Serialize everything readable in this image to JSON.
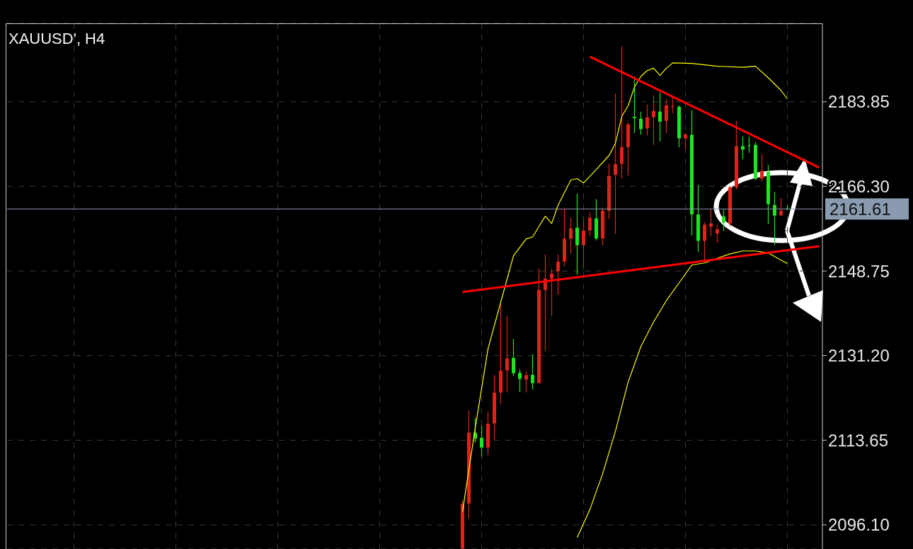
{
  "chart_data": {
    "type": "candlestick",
    "title": "XAUUSD', H4",
    "categories": [
      null,
      null,
      null,
      null,
      null,
      null,
      null,
      null,
      null,
      null,
      null,
      null,
      null,
      null,
      null,
      null,
      null,
      null,
      null,
      null,
      null,
      null,
      null,
      null,
      null,
      null,
      null,
      null,
      null,
      null,
      null,
      null,
      null,
      null,
      null,
      null,
      null,
      null,
      null,
      null,
      null,
      null,
      null,
      null,
      null,
      null,
      null,
      null,
      null,
      null,
      null,
      null,
      null,
      null,
      null,
      null,
      null,
      null,
      null,
      null,
      null,
      null,
      null,
      null,
      null,
      null,
      null,
      null,
      null,
      null,
      null,
      null,
      null,
      null,
      null,
      null,
      null,
      null,
      null,
      null,
      null,
      null,
      null,
      null,
      null,
      null,
      null,
      null,
      null,
      null,
      null,
      null,
      null,
      null,
      null,
      null,
      null,
      null,
      null,
      null,
      null,
      null,
      null,
      null,
      null,
      null,
      null,
      null,
      null,
      null,
      null,
      null,
      null,
      null,
      null,
      null,
      null,
      null,
      null,
      null,
      null,
      null,
      null,
      null,
      null,
      null,
      null,
      null
    ],
    "ylim": [
      2091.1,
      2200.1
    ],
    "yticks": [
      {
        "value": 2096.1,
        "label": "2096.10"
      },
      2113.65,
      {
        "value": 2131.2,
        "label": "2131.20"
      },
      2148.75,
      {
        "value": 2166.3,
        "label": "2166.30"
      },
      2183.85
    ],
    "grid": true,
    "tick_labels": "y",
    "ref_lines": [
      {
        "axis": "y",
        "value": 2161.61,
        "label": "2161.61",
        "color": "#8a9bb0"
      }
    ],
    "series": [
      {
        "type": "line",
        "color": "#ffff00",
        "values": [
          null,
          null,
          null,
          null,
          null,
          null,
          null,
          null,
          null,
          null,
          null,
          null,
          null,
          null,
          null,
          null,
          null,
          null,
          null,
          null,
          null,
          null,
          null,
          null,
          null,
          null,
          null,
          null,
          null,
          null,
          null,
          null,
          null,
          null,
          null,
          null,
          null,
          null,
          null,
          null,
          null,
          null,
          null,
          null,
          null,
          null,
          null,
          null,
          null,
          null,
          null,
          null,
          null,
          null,
          null,
          null,
          null,
          null,
          null,
          null,
          null,
          null,
          null,
          null,
          null,
          null,
          null,
          null,
          null,
          null,
          null,
          2098.9,
          null,
          2116.2,
          null,
          2132.6,
          null,
          2142.3,
          null,
          2151.9,
          null,
          2155.4,
          2155.8,
          2158.0,
          2160.1,
          2158.6,
          2162.4,
          null,
          2167.6,
          2167.9,
          2167.0,
          null,
          2169.8,
          null,
          2172.7,
          2175.2,
          2180.8,
          2183.0,
          2186.9,
          2189.1,
          2190.3,
          2190.8,
          2189.3,
          2190.8,
          2191.9,
          null,
          null,
          2191.8,
          null,
          null,
          null,
          2191.2,
          null,
          null,
          null,
          2191.0,
          null,
          2191.2,
          null,
          2188.8,
          null,
          2186.2,
          2184.4,
          null,
          null,
          null,
          null,
          null
        ]
      },
      {
        "type": "line",
        "color": "#ffff00",
        "values": [
          null,
          null,
          null,
          null,
          null,
          null,
          null,
          null,
          null,
          null,
          null,
          null,
          null,
          null,
          null,
          null,
          null,
          null,
          null,
          null,
          null,
          null,
          null,
          null,
          null,
          null,
          null,
          null,
          null,
          null,
          null,
          null,
          null,
          null,
          null,
          null,
          null,
          null,
          null,
          null,
          null,
          null,
          null,
          null,
          null,
          null,
          null,
          null,
          null,
          null,
          null,
          null,
          null,
          null,
          null,
          null,
          null,
          null,
          null,
          null,
          null,
          null,
          null,
          null,
          null,
          null,
          null,
          null,
          null,
          null,
          null,
          null,
          null,
          null,
          null,
          null,
          null,
          null,
          null,
          null,
          null,
          null,
          null,
          null,
          null,
          null,
          null,
          null,
          null,
          2093.5,
          null,
          2099.3,
          null,
          2106.7,
          null,
          2115.5,
          null,
          2125.7,
          null,
          2133.1,
          null,
          2138.2,
          null,
          2142.6,
          null,
          2146.3,
          null,
          2150.0,
          null,
          2150.4,
          null,
          2151.4,
          null,
          2152.3,
          null,
          2152.9,
          null,
          2152.9,
          null,
          2152.5,
          null,
          2151.0,
          2150.3,
          null,
          null,
          null,
          null,
          null
        ]
      },
      {
        "type": "line",
        "color": "#ff0000",
        "values": [
          null,
          null,
          null,
          null,
          null,
          null,
          null,
          null,
          null,
          null,
          null,
          null,
          null,
          null,
          null,
          null,
          null,
          null,
          null,
          null,
          null,
          null,
          null,
          null,
          null,
          null,
          null,
          null,
          null,
          null,
          null,
          null,
          null,
          null,
          null,
          null,
          null,
          null,
          null,
          null,
          null,
          null,
          null,
          null,
          null,
          null,
          null,
          null,
          null,
          null,
          null,
          null,
          null,
          null,
          null,
          null,
          null,
          null,
          null,
          null,
          null,
          null,
          null,
          null,
          null,
          null,
          null,
          null,
          null,
          null,
          null,
          null,
          null,
          null,
          null,
          null,
          null,
          null,
          null,
          null,
          null,
          null,
          null,
          null,
          null,
          null,
          null,
          null,
          null,
          null,
          null,
          2193.2,
          null,
          null,
          null,
          null,
          null,
          null,
          null,
          null,
          null,
          null,
          null,
          null,
          null,
          null,
          null,
          null,
          null,
          null,
          null,
          null,
          null,
          null,
          null,
          null,
          null,
          null,
          null,
          null,
          null,
          null,
          null,
          null,
          null,
          null,
          null,
          2170.2
        ]
      },
      {
        "type": "line",
        "color": "#ff0000",
        "values": [
          null,
          null,
          null,
          null,
          null,
          null,
          null,
          null,
          null,
          null,
          null,
          null,
          null,
          null,
          null,
          null,
          null,
          null,
          null,
          null,
          null,
          null,
          null,
          null,
          null,
          null,
          null,
          null,
          null,
          null,
          null,
          null,
          null,
          null,
          null,
          null,
          null,
          null,
          null,
          null,
          null,
          null,
          null,
          null,
          null,
          null,
          null,
          null,
          null,
          null,
          null,
          null,
          null,
          null,
          null,
          null,
          null,
          null,
          null,
          null,
          null,
          null,
          null,
          null,
          null,
          null,
          null,
          null,
          null,
          null,
          null,
          2144.4,
          null,
          null,
          null,
          null,
          null,
          null,
          null,
          null,
          null,
          null,
          null,
          null,
          null,
          null,
          null,
          null,
          null,
          null,
          null,
          null,
          null,
          null,
          null,
          null,
          null,
          null,
          null,
          null,
          null,
          null,
          null,
          null,
          null,
          null,
          null,
          null,
          null,
          null,
          null,
          null,
          null,
          null,
          null,
          null,
          null,
          null,
          null,
          null,
          null,
          null,
          null,
          null,
          null,
          null,
          null,
          2153.9
        ]
      },
      {
        "ohlc": [
          null,
          null,
          null,
          null,
          null,
          null,
          null,
          null,
          null,
          null,
          null,
          null,
          null,
          null,
          null,
          null,
          null,
          null,
          null,
          null,
          null,
          null,
          null,
          null,
          null,
          null,
          null,
          null,
          null,
          null,
          null,
          null,
          null,
          null,
          null,
          null,
          null,
          null,
          null,
          null,
          null,
          null,
          null,
          null,
          null,
          null,
          null,
          null,
          null,
          null,
          null,
          null,
          null,
          null,
          null,
          null,
          null,
          null,
          null,
          null,
          null,
          null,
          null,
          null,
          null,
          null,
          null,
          null,
          null,
          null,
          null,
          [
            2091.2,
            2101.2,
            2091.2,
            2100.5
          ],
          [
            2100.55,
            2119.77,
            2097.38,
            2115.22
          ],
          [
            2115.22,
            2118.3,
            2113.2,
            2114.0
          ],
          [
            2114.15,
            2116.64,
            2110.23,
            2112.14
          ],
          [
            2112.14,
            2119.58,
            2110.6,
            2117.08
          ],
          [
            2117.13,
            2127.2,
            2113.75,
            2123.54
          ],
          [
            2123.54,
            2141.78,
            2121.09,
            2128.1
          ],
          [
            2128.13,
            2139.43,
            2123.54,
            2130.63
          ],
          [
            2130.73,
            2134.7,
            2126.96,
            2127.55
          ],
          [
            2127.6,
            2128.34,
            2123.64,
            2126.37
          ],
          [
            2126.23,
            2127.94,
            2123.54,
            2127.17
          ],
          [
            2127.2,
            2131.46,
            2124.17,
            2125.49
          ],
          [
            2125.49,
            2149.22,
            2125.49,
            2144.82
          ],
          [
            2144.82,
            2152.15,
            2132.1,
            2147.17
          ],
          [
            2147.17,
            2149.22,
            2139.43,
            2148.2
          ],
          [
            2148.68,
            2152.15,
            2143.83,
            2150.69
          ],
          [
            2150.69,
            2161.55,
            2149.7,
            2155.43
          ],
          [
            2155.43,
            2159.83,
            2152.4,
            2157.58
          ],
          [
            2157.73,
            2164.77,
            2148.0,
            2154.1
          ],
          [
            2154.1,
            2159.39,
            2149.22,
            2157.14
          ],
          [
            2157.14,
            2160.86,
            2156.07,
            2159.78
          ],
          [
            2159.64,
            2163.64,
            2155.09,
            2155.49
          ],
          [
            2155.49,
            2161.94,
            2154.02,
            2161.25
          ],
          [
            2161.21,
            2171.04,
            2159.49,
            2168.44
          ],
          [
            2168.69,
            2185.51,
            2156.45,
            2170.94
          ],
          [
            2170.98,
            2195.3,
            2167.9,
            2174.46
          ],
          [
            2174.46,
            2179.55,
            2168.55,
            2179.15
          ],
          [
            2180.72,
            2189.09,
            2177.35,
            2180.43
          ],
          [
            2180.33,
            2181.75,
            2177.0,
            2178.17
          ],
          [
            2178.32,
            2183.26,
            2176.85,
            2180.62
          ],
          [
            2180.62,
            2185.17,
            2174.9,
            2181.94
          ],
          [
            2181.8,
            2185.76,
            2175.63,
            2179.74
          ],
          [
            2179.89,
            2184.44,
            2177.35,
            2183.12
          ],
          [
            2182.93,
            2184.83,
            2181.5,
            2182.97
          ],
          [
            2182.82,
            2183.07,
            2174.42,
            2176.26
          ],
          [
            2176.26,
            2177.35,
            2173.92,
            2177.1
          ],
          [
            2177.0,
            2182.09,
            2156.16,
            2160.47
          ],
          [
            2160.47,
            2166.58,
            2152.74,
            2155.0
          ],
          [
            2155.0,
            2158.9,
            2150.94,
            2158.36
          ],
          [
            2157.92,
            2161.69,
            2155.97,
            2158.61
          ],
          [
            2156.5,
            2158.3,
            2154.6,
            2157.4
          ],
          [
            2160.08,
            2161.44,
            2157.04,
            2158.76
          ],
          [
            2158.61,
            2166.38,
            2158.02,
            2166.09
          ],
          [
            2166.09,
            2179.89,
            2165.65,
            2174.65
          ],
          [
            2174.65,
            2176.62,
            2171.96,
            2173.92
          ],
          [
            2174.8,
            2176.62,
            2173.28,
            2174.75
          ],
          [
            2174.9,
            2175.44,
            2167.6,
            2167.86
          ],
          [
            2167.9,
            2172.9,
            2167.3,
            2169.5
          ],
          [
            2169.28,
            2170.75,
            2158.51,
            2162.62
          ],
          [
            2162.43,
            2165.11,
            2154.1,
            2160.23
          ],
          [
            2160.27,
            2163.89,
            2160.23,
            2161.25
          ],
          [
            2161.7,
            2162.4,
            2161.4,
            2161.61
          ],
          null,
          null,
          null,
          null,
          null
        ],
        "colors": [
          null,
          null,
          null,
          null,
          null,
          null,
          null,
          null,
          null,
          null,
          null,
          null,
          null,
          null,
          null,
          null,
          null,
          null,
          null,
          null,
          null,
          null,
          null,
          null,
          null,
          null,
          null,
          null,
          null,
          null,
          null,
          null,
          null,
          null,
          null,
          null,
          null,
          null,
          null,
          null,
          null,
          null,
          null,
          null,
          null,
          null,
          null,
          null,
          null,
          null,
          null,
          null,
          null,
          null,
          null,
          null,
          null,
          null,
          null,
          null,
          null,
          null,
          null,
          null,
          null,
          null,
          null,
          null,
          null,
          null,
          null,
          "#e0231a",
          "#e0231a",
          "#1ee61e",
          "#1ee61e",
          "#e0231a",
          "#e0231a",
          "#e0231a",
          "#e0231a",
          "#1ee61e",
          "#1ee61e",
          "#e0231a",
          "#1ee61e",
          "#e0231a",
          "#e0231a",
          "#e0231a",
          "#e0231a",
          "#e0231a",
          "#e0231a",
          "#1ee61e",
          "#e0231a",
          "#e0231a",
          "#1ee61e",
          "#e0231a",
          "#e0231a",
          "#e0231a",
          "#e0231a",
          "#e0231a",
          "#1ee61e",
          "#1ee61e",
          "#e0231a",
          "#e0231a",
          "#1ee61e",
          "#e0231a",
          "#e0231a",
          "#1ee61e",
          "#e0231a",
          "#1ee61e",
          "#1ee61e",
          "#e0231a",
          "#e0231a",
          "#e0231a",
          "#1ee61e",
          "#e0231a",
          "#e0231a",
          "#1ee61e",
          "#1ee61e",
          "#1ee61e",
          "#e0231a",
          "#1ee61e",
          "#1ee61e",
          "#e0231a",
          "#1ee61e",
          null,
          null,
          null,
          null,
          null
        ]
      }
    ]
  }
}
